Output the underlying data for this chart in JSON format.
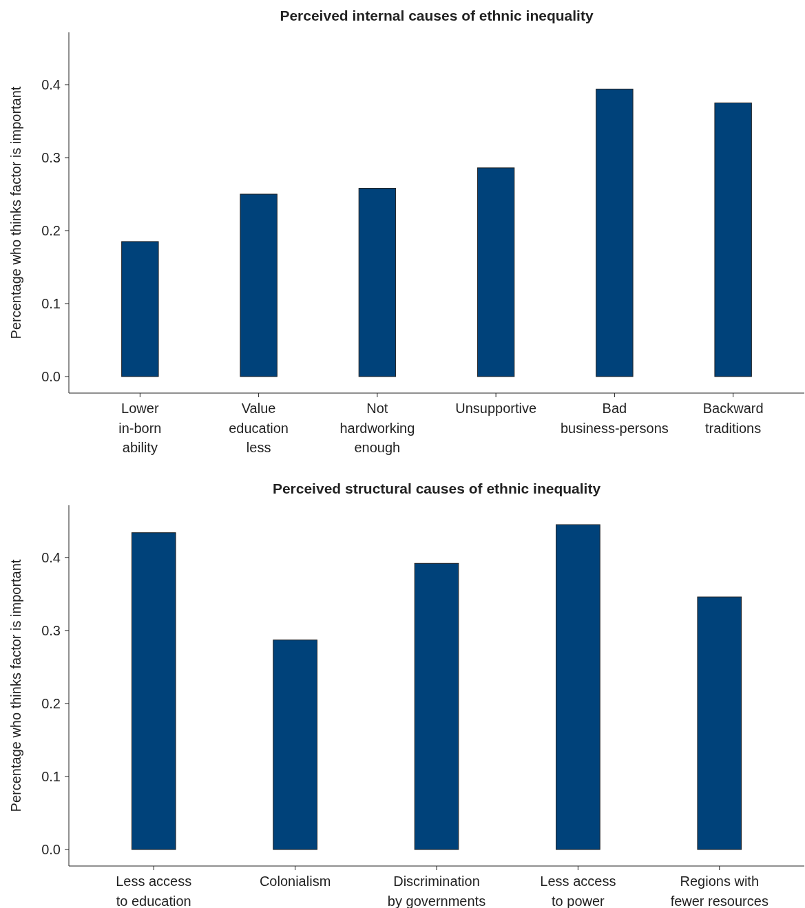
{
  "chart_data": [
    {
      "type": "bar",
      "title": "Perceived internal causes of ethnic inequality",
      "ylabel": "Percentage who thinks factor is important",
      "categories": [
        "Lower\nin-born\nability",
        "Value\neducation\nless",
        "Not\nhardworking\nenough",
        "Unsupportive",
        "Bad\nbusiness-persons",
        "Backward\ntraditions"
      ],
      "values": [
        0.185,
        0.25,
        0.258,
        0.286,
        0.394,
        0.375
      ],
      "color": "#00427a",
      "ylim": [
        -0.0226,
        0.4717
      ],
      "yticks": [
        {
          "value": 0,
          "label": "0.0"
        },
        0.1,
        0.2,
        0.3,
        0.4
      ],
      "grid": false
    },
    {
      "type": "bar",
      "title": "Perceived structural causes of ethnic inequality",
      "ylabel": "Percentage who thinks factor is important",
      "categories": [
        "Less access\nto education",
        "Colonialism",
        "Discrimination\nby governments",
        "Less access\nto power",
        "Regions with\nfewer resources"
      ],
      "values": [
        0.434,
        0.287,
        0.392,
        0.445,
        0.346
      ],
      "color": "#00427a",
      "ylim": [
        -0.0226,
        0.4715
      ],
      "yticks": [
        {
          "value": 0,
          "label": "0.0"
        },
        0.1,
        0.2,
        0.3,
        0.4
      ],
      "grid": false
    }
  ]
}
